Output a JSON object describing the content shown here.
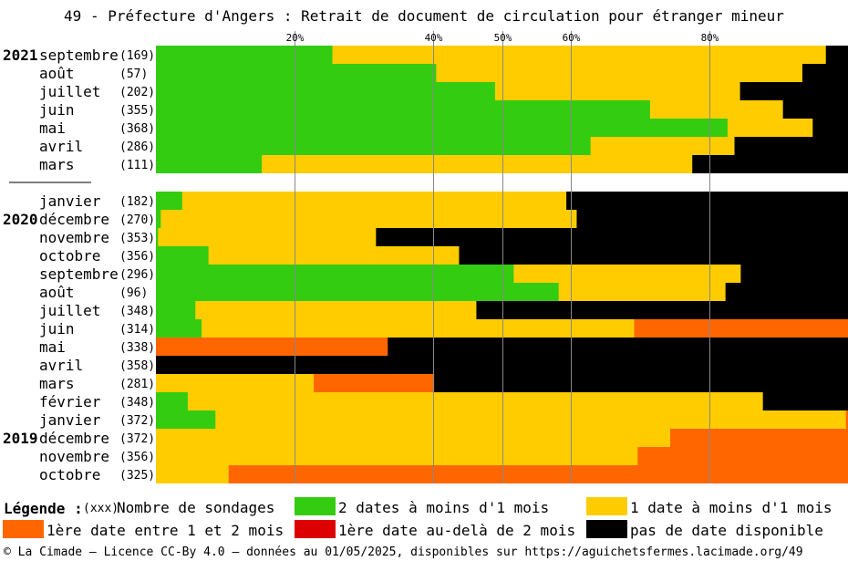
{
  "title": "49 - Préfecture d'Angers : Retrait de document de circulation pour étranger mineur",
  "colors": {
    "green": "#33cc11",
    "yellow": "#ffcc00",
    "orange": "#ff6600",
    "red": "#dd0000",
    "black": "#000000",
    "gridline": "#888888"
  },
  "chart_data": {
    "type": "bar",
    "orientation": "horizontal-stacked-100",
    "xlim": [
      0,
      100
    ],
    "x_ticks": [
      {
        "value": 20,
        "label": "20%"
      },
      {
        "value": 40,
        "label": "40%"
      },
      {
        "value": 50,
        "label": "50%"
      },
      {
        "value": 60,
        "label": "60%"
      },
      {
        "value": 80,
        "label": "80%"
      }
    ],
    "series_keys": [
      "green",
      "yellow",
      "orange",
      "red",
      "black"
    ],
    "rows": [
      {
        "year": "2021",
        "month": "septembre",
        "count": "(169)",
        "values": [
          25.5,
          71.3,
          0,
          0,
          3.2
        ]
      },
      {
        "year": "",
        "month": "août",
        "count": "(57)",
        "values": [
          40.5,
          52.9,
          0,
          0,
          6.6
        ]
      },
      {
        "year": "",
        "month": "juillet",
        "count": "(202)",
        "values": [
          49.0,
          35.4,
          0,
          0,
          15.6
        ]
      },
      {
        "year": "",
        "month": "juin",
        "count": "(355)",
        "values": [
          71.4,
          19.2,
          0,
          0,
          9.4
        ]
      },
      {
        "year": "",
        "month": "mai",
        "count": "(368)",
        "values": [
          82.6,
          12.3,
          0,
          0,
          5.1
        ]
      },
      {
        "year": "",
        "month": "avril",
        "count": "(286)",
        "values": [
          62.8,
          20.8,
          0,
          0,
          16.4
        ]
      },
      {
        "year": "",
        "month": "mars",
        "count": "(111)",
        "values": [
          15.3,
          62.2,
          0,
          0,
          22.5
        ]
      },
      {
        "gap": true
      },
      {
        "year": "",
        "month": "janvier",
        "count": "(182)",
        "values": [
          3.8,
          55.5,
          0,
          0,
          40.7
        ]
      },
      {
        "year": "2020",
        "month": "décembre",
        "count": "(270)",
        "values": [
          0.7,
          60.1,
          0,
          0,
          39.2
        ]
      },
      {
        "year": "",
        "month": "novembre",
        "count": "(353)",
        "values": [
          0.3,
          31.5,
          0,
          0,
          68.2
        ]
      },
      {
        "year": "",
        "month": "octobre",
        "count": "(356)",
        "values": [
          7.6,
          36.2,
          0,
          0,
          56.2
        ]
      },
      {
        "year": "",
        "month": "septembre",
        "count": "(296)",
        "values": [
          51.7,
          32.8,
          0,
          0,
          15.5
        ]
      },
      {
        "year": "",
        "month": "août",
        "count": "(96)",
        "values": [
          58.2,
          24.1,
          0,
          0,
          17.7
        ]
      },
      {
        "year": "",
        "month": "juillet",
        "count": "(348)",
        "values": [
          5.7,
          40.6,
          0,
          0,
          53.7
        ]
      },
      {
        "year": "",
        "month": "juin",
        "count": "(314)",
        "values": [
          6.6,
          62.5,
          30.9,
          0,
          0
        ]
      },
      {
        "year": "",
        "month": "mai",
        "count": "(338)",
        "values": [
          0,
          0,
          33.5,
          0,
          66.5
        ]
      },
      {
        "year": "",
        "month": "avril",
        "count": "(358)",
        "values": [
          0,
          0,
          0,
          0,
          100
        ]
      },
      {
        "year": "",
        "month": "mars",
        "count": "(281)",
        "values": [
          0,
          22.8,
          17.4,
          0,
          59.8
        ]
      },
      {
        "year": "",
        "month": "février",
        "count": "(348)",
        "values": [
          4.6,
          83.1,
          0,
          0,
          12.3
        ]
      },
      {
        "year": "",
        "month": "janvier",
        "count": "(372)",
        "values": [
          8.6,
          91.1,
          0.3,
          0,
          0
        ]
      },
      {
        "year": "2019",
        "month": "décembre",
        "count": "(372)",
        "values": [
          0,
          74.3,
          25.7,
          0,
          0
        ]
      },
      {
        "year": "",
        "month": "novembre",
        "count": "(356)",
        "values": [
          0,
          69.6,
          30.4,
          0,
          0
        ]
      },
      {
        "year": "",
        "month": "octobre",
        "count": "(325)",
        "values": [
          0,
          10.5,
          89.5,
          0,
          0
        ]
      }
    ]
  },
  "legend": {
    "title": "Légende :",
    "count_hint": "(xxx)",
    "count_label": "Nombre de sondages",
    "items": [
      {
        "key": "green",
        "label": "2 dates à moins d'1 mois"
      },
      {
        "key": "yellow",
        "label": "1 date à moins d'1 mois"
      },
      {
        "key": "orange",
        "label": "1ère date entre 1 et 2 mois"
      },
      {
        "key": "red",
        "label": "1ère date au-delà de 2 mois"
      },
      {
        "key": "black",
        "label": "pas de date disponible"
      }
    ]
  },
  "footer": "© La Cimade – Licence CC-By 4.0 – données au 01/05/2025, disponibles sur https://aguichetsfermes.lacimade.org/49"
}
